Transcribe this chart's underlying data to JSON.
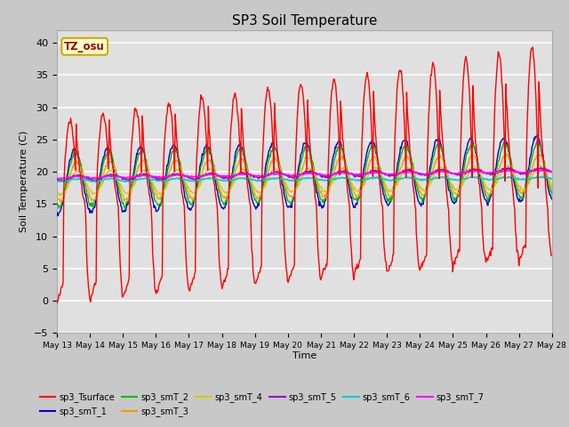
{
  "title": "SP3 Soil Temperature",
  "xlabel": "Time",
  "ylabel": "Soil Temperature (C)",
  "ylim": [
    -5,
    42
  ],
  "yticks": [
    -5,
    0,
    5,
    10,
    15,
    20,
    25,
    30,
    35,
    40
  ],
  "n_days": 15,
  "xtick_labels": [
    "May 13",
    "May 14",
    "May 15",
    "May 16",
    "May 17",
    "May 18",
    "May 19",
    "May 20",
    "May 21",
    "May 22",
    "May 23",
    "May 24",
    "May 25",
    "May 26",
    "May 27",
    "May 28"
  ],
  "legend_entries": [
    "sp3_Tsurface",
    "sp3_smT_1",
    "sp3_smT_2",
    "sp3_smT_3",
    "sp3_smT_4",
    "sp3_smT_5",
    "sp3_smT_6",
    "sp3_smT_7"
  ],
  "legend_colors": [
    "#ff0000",
    "#0000cd",
    "#00bb00",
    "#ff9900",
    "#cccc00",
    "#9900cc",
    "#00cccc",
    "#ff00ff"
  ],
  "annotation_text": "TZ_osu",
  "annotation_bg": "#ffffcc",
  "annotation_border": "#ccaa00",
  "fig_bg": "#c8c8c8",
  "plot_bg": "#e0e0e0",
  "title_fontsize": 11
}
